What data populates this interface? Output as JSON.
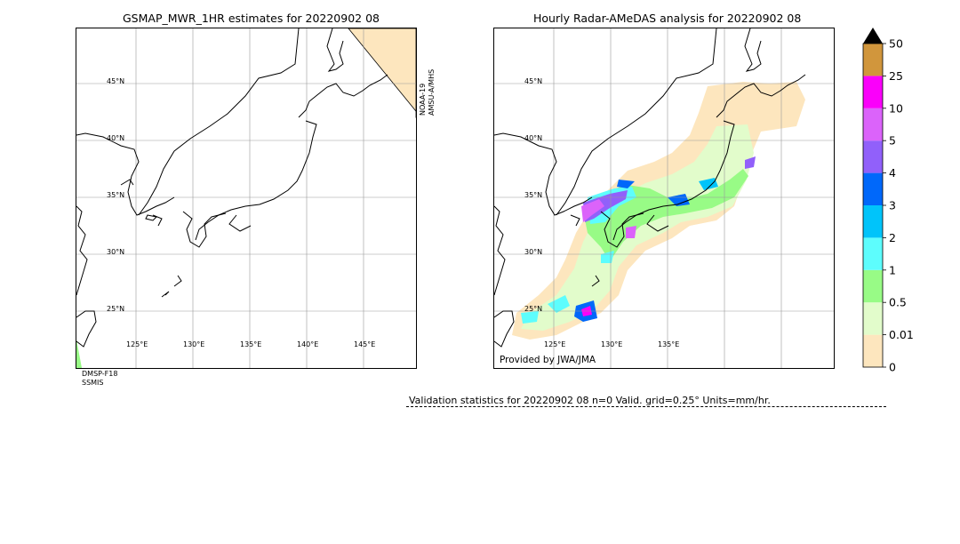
{
  "left_panel": {
    "title": "GSMAP_MWR_1HR estimates for 20220902 08",
    "satellite_right": [
      "NOAA-19",
      "AMSU-A/MHS"
    ],
    "satellite_bottom": [
      "DMSP-F18",
      "SSMIS"
    ],
    "lat_labels": [
      "45°N",
      "40°N",
      "35°N",
      "30°N",
      "25°N"
    ],
    "lon_labels": [
      "125°E",
      "130°E",
      "135°E",
      "140°E",
      "145°E"
    ]
  },
  "right_panel": {
    "title": "Hourly Radar-AMeDAS analysis for 20220902 08",
    "credit": "Provided by JWA/JMA",
    "lat_labels": [
      "45°N",
      "40°N",
      "35°N",
      "30°N",
      "25°N"
    ],
    "lon_labels": [
      "125°E",
      "130°E",
      "135°E"
    ]
  },
  "colorbar": {
    "levels": [
      "0",
      "0.01",
      "0.5",
      "1",
      "2",
      "3",
      "4",
      "5",
      "10",
      "25",
      "50"
    ],
    "colors": [
      "#fde6be",
      "#e2fccb",
      "#98fb86",
      "#5dfdfd",
      "#00c4fa",
      "#0068fa",
      "#9160fa",
      "#db63fa",
      "#fa00fa",
      "#d1963c"
    ],
    "extend_color": "#000000"
  },
  "validation": {
    "text": "Validation statistics for 20220902 08  n=0 Valid. grid=0.25° Units=mm/hr."
  }
}
